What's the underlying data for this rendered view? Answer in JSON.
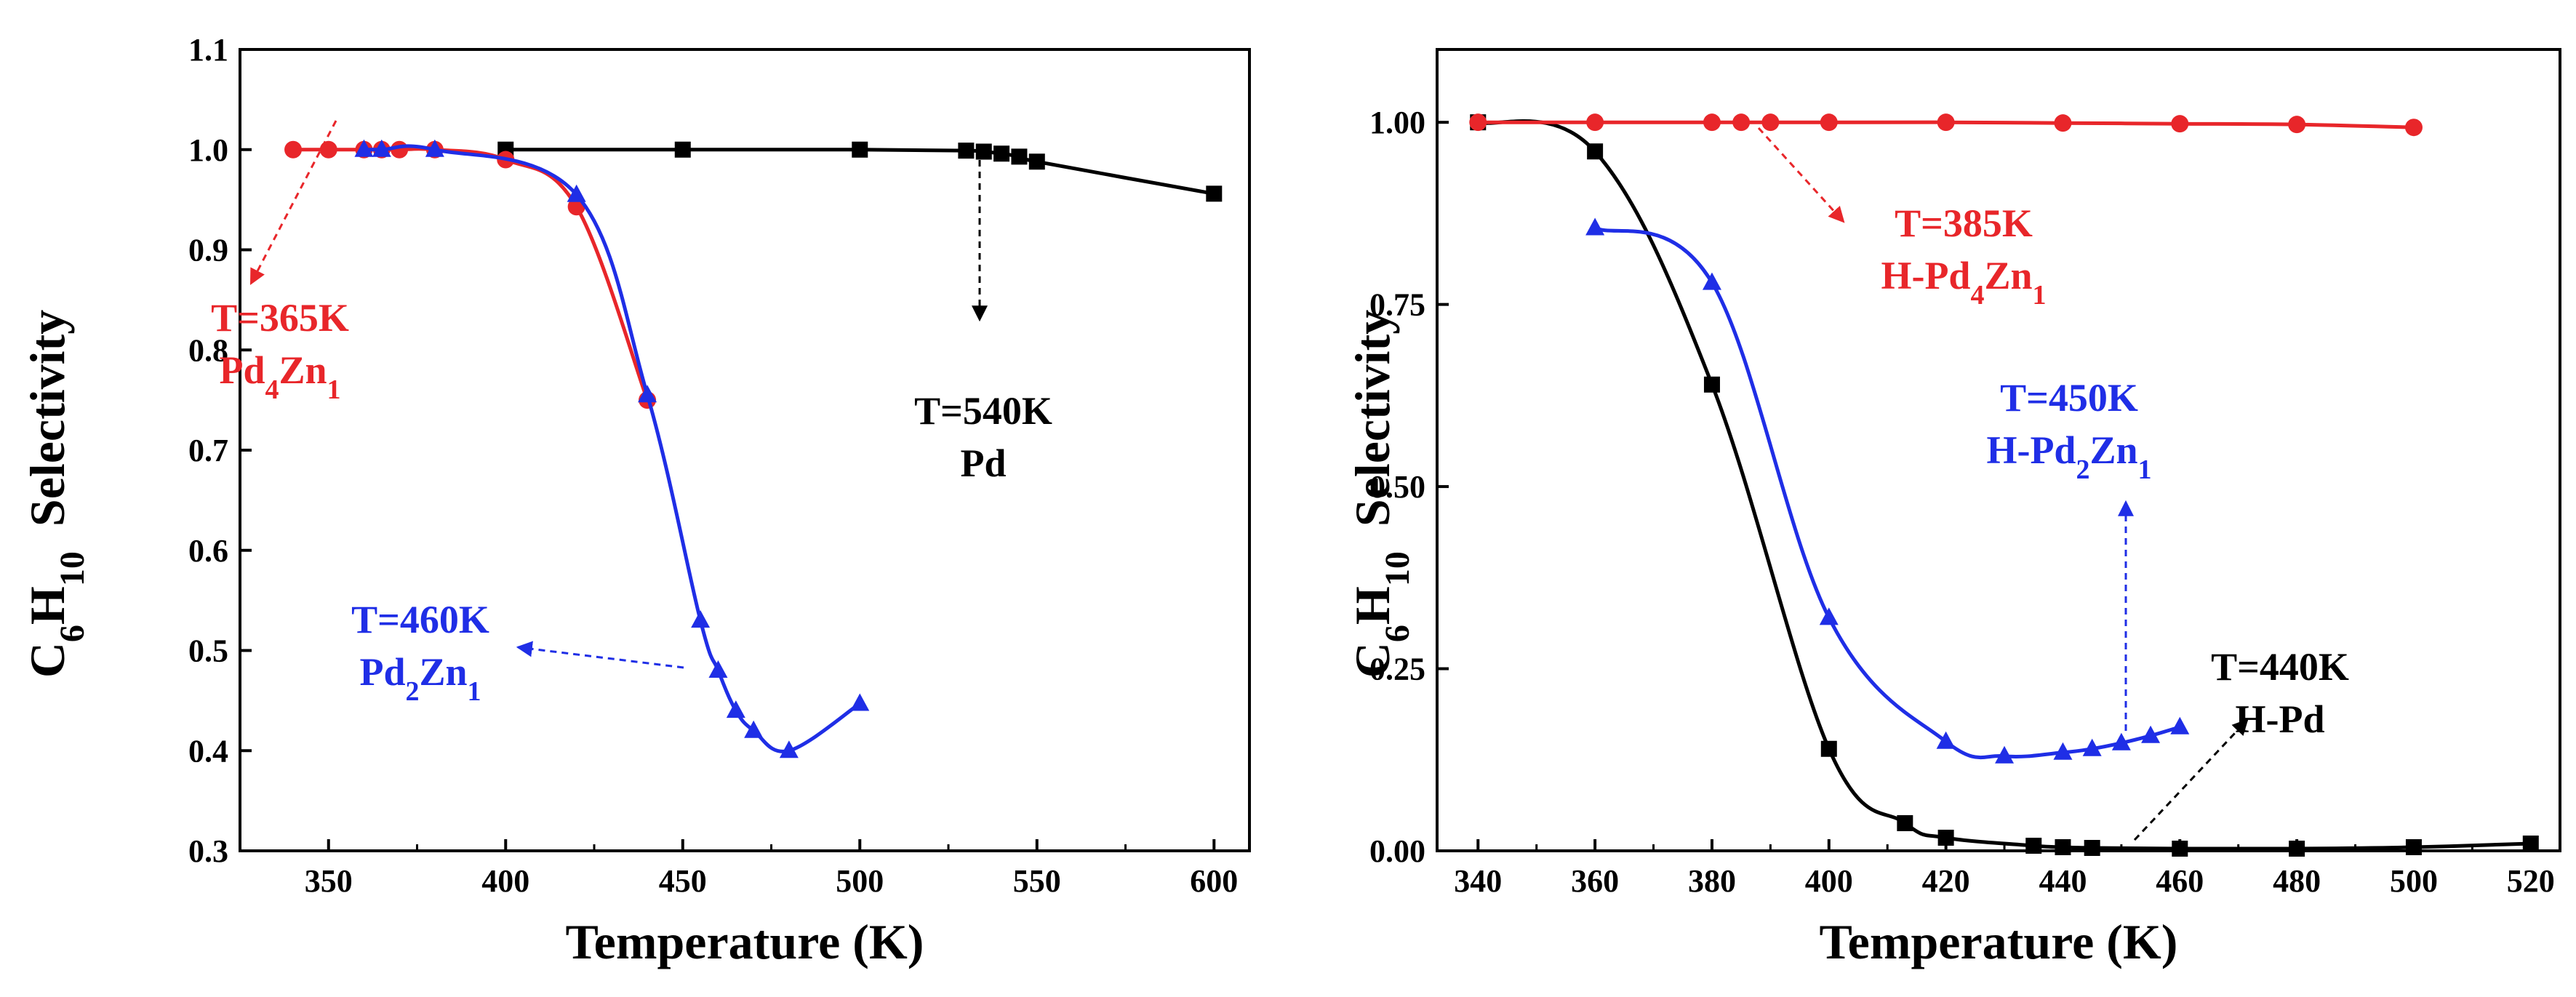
{
  "chart_data": [
    {
      "type": "line",
      "panel": "left",
      "title": "",
      "xlabel": "Temperature (K)",
      "ylabel_parts": [
        "C",
        "6",
        "H",
        "10",
        "Selectivity"
      ],
      "xlim": [
        325,
        610
      ],
      "ylim": [
        0.3,
        1.1
      ],
      "xticks": [
        350,
        400,
        450,
        500,
        550,
        600
      ],
      "yticks": [
        0.3,
        0.4,
        0.5,
        0.6,
        0.7,
        0.8,
        0.9,
        1.0,
        1.1
      ],
      "ytick_labels": [
        "0.3",
        "0.4",
        "0.5",
        "0.6",
        "0.7",
        "0.8",
        "0.9",
        "1.0",
        "1.1"
      ],
      "grid": false,
      "series": [
        {
          "name": "Pd",
          "color": "#000000",
          "marker": "square",
          "x": [
            400,
            450,
            500,
            530,
            535,
            540,
            545,
            550,
            600
          ],
          "y": [
            1.0,
            1.0,
            1.0,
            0.999,
            0.998,
            0.996,
            0.993,
            0.988,
            0.956
          ]
        },
        {
          "name": "Pd4Zn1",
          "color": "#e8262a",
          "marker": "circle",
          "x": [
            340,
            350,
            360,
            365,
            370,
            380,
            400,
            420,
            440
          ],
          "y": [
            1.0,
            1.0,
            1.0,
            1.0,
            1.0,
            1.0,
            0.99,
            0.943,
            0.75
          ]
        },
        {
          "name": "Pd2Zn1",
          "color": "#1f2ee6",
          "marker": "triangle",
          "x": [
            360,
            365,
            380,
            420,
            440,
            455,
            460,
            465,
            470,
            480,
            500
          ],
          "y": [
            1.0,
            1.0,
            1.0,
            0.955,
            0.755,
            0.53,
            0.48,
            0.44,
            0.42,
            0.4,
            0.447
          ]
        }
      ],
      "annotations": [
        {
          "id": "a1",
          "lines": [
            "T=365K",
            "Pd4Zn1"
          ],
          "color": "#e8262a"
        },
        {
          "id": "a2",
          "lines": [
            "T=540K",
            "Pd"
          ],
          "color": "#000000"
        },
        {
          "id": "a3",
          "lines": [
            "T=460K",
            "Pd2Zn1"
          ],
          "color": "#1f2ee6"
        }
      ]
    },
    {
      "type": "line",
      "panel": "right",
      "title": "",
      "xlabel": "Temperature (K)",
      "ylabel_parts": [
        "C",
        "6",
        "H",
        "10",
        "Selectivity"
      ],
      "xlim": [
        333,
        525
      ],
      "ylim": [
        0.0,
        1.1
      ],
      "xticks": [
        340,
        360,
        380,
        400,
        420,
        440,
        460,
        480,
        500,
        520
      ],
      "yticks": [
        0.0,
        0.25,
        0.5,
        0.75,
        1.0
      ],
      "ytick_labels": [
        "0.00",
        "0.25",
        "0.50",
        "0.75",
        "1.00"
      ],
      "grid": false,
      "series": [
        {
          "name": "H-Pd",
          "color": "#000000",
          "marker": "square",
          "x": [
            340,
            360,
            380,
            400,
            413,
            420,
            435,
            440,
            445,
            460,
            480,
            500,
            520
          ],
          "y": [
            1.0,
            0.96,
            0.64,
            0.14,
            0.038,
            0.018,
            0.007,
            0.005,
            0.004,
            0.003,
            0.003,
            0.005,
            0.01
          ]
        },
        {
          "name": "H-Pd4Zn1",
          "color": "#e8262a",
          "marker": "circle",
          "x": [
            340,
            360,
            380,
            385,
            390,
            400,
            420,
            440,
            460,
            480,
            500
          ],
          "y": [
            1.0,
            1.0,
            1.0,
            1.0,
            1.0,
            1.0,
            1.0,
            0.999,
            0.998,
            0.997,
            0.993
          ]
        },
        {
          "name": "H-Pd2Zn1",
          "color": "#1f2ee6",
          "marker": "triangle",
          "x": [
            360,
            380,
            400,
            420,
            430,
            440,
            445,
            450,
            455,
            460
          ],
          "y": [
            0.855,
            0.78,
            0.32,
            0.15,
            0.13,
            0.135,
            0.14,
            0.148,
            0.158,
            0.17
          ]
        }
      ],
      "annotations": [
        {
          "id": "b1",
          "lines": [
            "T=385K",
            "H-Pd4Zn1"
          ],
          "color": "#e8262a"
        },
        {
          "id": "b2",
          "lines": [
            "T=450K",
            "H-Pd2Zn1"
          ],
          "color": "#1f2ee6"
        },
        {
          "id": "b3",
          "lines": [
            "T=440K",
            "H-Pd"
          ],
          "color": "#000000"
        }
      ]
    }
  ]
}
